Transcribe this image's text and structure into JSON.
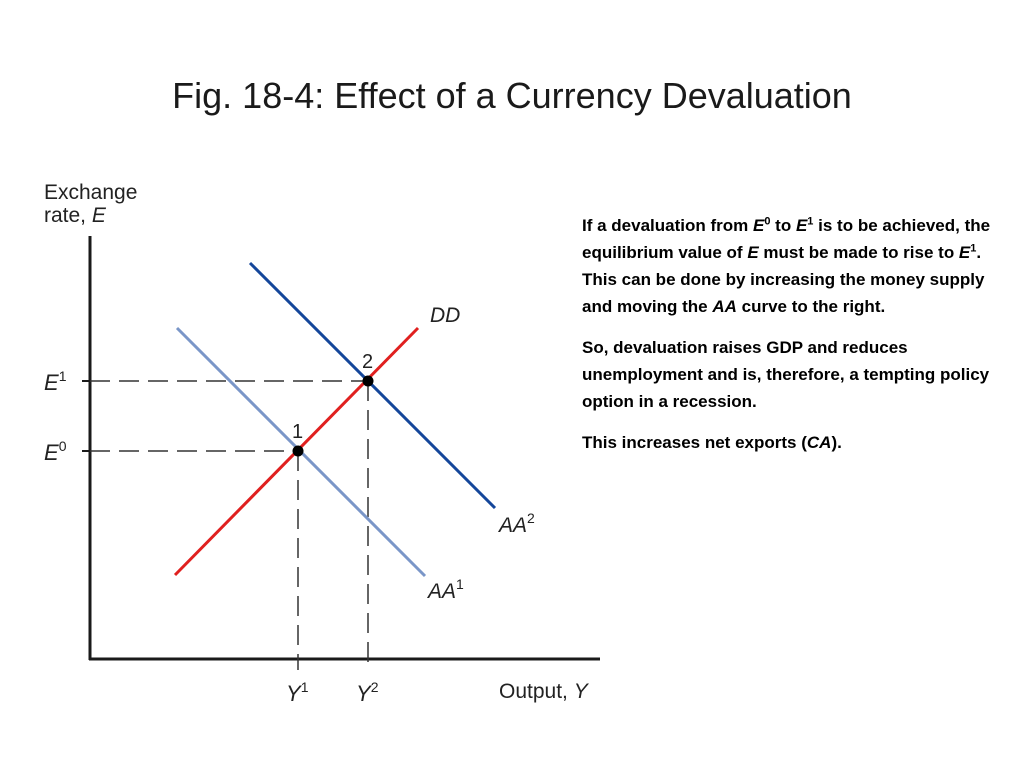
{
  "slide": {
    "title": "Fig. 18-4: Effect of a Currency Devaluation"
  },
  "diagram": {
    "y_axis_label_line1": "Exchange",
    "y_axis_label_line2": "rate, ",
    "y_axis_label_var": "E",
    "x_axis_label": "Output, ",
    "x_axis_label_var": "Y",
    "curves": {
      "dd": "DD",
      "aa1_base": "AA",
      "aa1_sup": "1",
      "aa2_base": "AA",
      "aa2_sup": "2"
    },
    "points": {
      "p1": "1",
      "p2": "2"
    },
    "e_ticks": {
      "e0_base": "E",
      "e0_sup": "0",
      "e1_base": "E",
      "e1_sup": "1"
    },
    "y_ticks": {
      "y1_base": "Y",
      "y1_sup": "1",
      "y2_base": "Y",
      "y2_sup": "2"
    },
    "colors": {
      "dd": "#e0201f",
      "aa1": "#7a96c8",
      "aa2": "#14469a",
      "axis": "#1a1a1a"
    }
  },
  "notes": {
    "p1": {
      "t1": "If a devaluation from ",
      "e0": "E",
      "e0_sup": "0",
      "t2": " to ",
      "e1": "E",
      "e1_sup": "1",
      "t3": " is to be achieved, the equilibrium value of ",
      "e": "E",
      "t4": " must be made to rise to ",
      "e1b": "E",
      "e1b_sup": "1",
      "t5": ". This can be done by increasing the money supply and moving the ",
      "aa": "AA",
      "t6": " curve to the right."
    },
    "p2": "So, devaluation raises GDP and reduces unemployment and is, therefore, a tempting policy option in a recession.",
    "p3": {
      "t1": "This increases net exports (",
      "ca": "CA",
      "t2": ")."
    }
  }
}
